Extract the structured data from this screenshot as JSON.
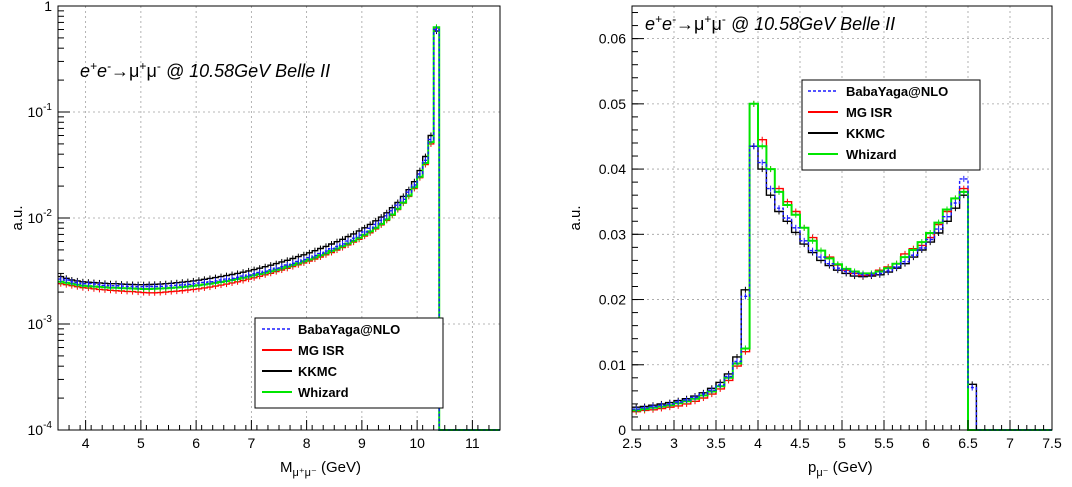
{
  "colors": {
    "BabaYaga@NLO": "#1a1aff",
    "MG ISR": "#ff0000",
    "KKMC": "#000000",
    "Whizard": "#00e600"
  },
  "chart_data": [
    {
      "type": "line",
      "subtype": "histogram",
      "annotation": {
        "pre": "e",
        "sup1": "+",
        "mid1": "e",
        "sup2": "-",
        "arrow": "→",
        "mu1": "μ",
        "sup3": "+",
        "mu2": "μ",
        "sup4": "-",
        "post": " @ 10.58GeV Belle II"
      },
      "xlabel": {
        "main": "M",
        "sub": "μ⁺μ⁻",
        "unit": " (GeV)"
      },
      "ylabel": "a.u.",
      "xlim": [
        3.5,
        11.5
      ],
      "ylim": [
        0.0001,
        1
      ],
      "yscale": "log",
      "grid": true,
      "legend_position": "bottom-right",
      "x_ticks": [
        "4",
        "5",
        "6",
        "7",
        "8",
        "9",
        "10",
        "11"
      ],
      "y_ticks": [
        {
          "base": "10",
          "exp": "-4"
        },
        {
          "base": "10",
          "exp": "-3"
        },
        {
          "base": "10",
          "exp": "-2"
        },
        {
          "base": "10",
          "exp": "-1"
        },
        {
          "base": "1",
          "exp": ""
        }
      ],
      "bin_width": 0.1,
      "bin_start": 3.5,
      "series": [
        {
          "name": "BabaYaga@NLO",
          "style": "dashed",
          "values": [
            0.00265,
            0.0026,
            0.0025,
            0.00245,
            0.0024,
            0.0024,
            0.00238,
            0.00235,
            0.00232,
            0.0023,
            0.0023,
            0.00228,
            0.00227,
            0.00226,
            0.00225,
            0.00225,
            0.00226,
            0.00226,
            0.00227,
            0.00228,
            0.0023,
            0.00232,
            0.00234,
            0.00237,
            0.0024,
            0.00243,
            0.00247,
            0.0025,
            0.00255,
            0.0026,
            0.00265,
            0.0027,
            0.00276,
            0.00283,
            0.0029,
            0.00298,
            0.00306,
            0.00315,
            0.00325,
            0.00336,
            0.00348,
            0.0036,
            0.00374,
            0.00389,
            0.00405,
            0.00423,
            0.00442,
            0.00463,
            0.00487,
            0.00513,
            0.0054,
            0.0057,
            0.00605,
            0.00645,
            0.0069,
            0.0074,
            0.008,
            0.0087,
            0.0095,
            0.0105,
            0.0117,
            0.0132,
            0.015,
            0.0175,
            0.0205,
            0.026,
            0.035,
            0.055,
            0.6,
            0,
            0,
            0,
            0,
            0,
            0,
            0,
            0,
            0,
            0,
            0
          ]
        },
        {
          "name": "MG ISR",
          "style": "solid",
          "values": [
            0.0024,
            0.00235,
            0.0023,
            0.00225,
            0.0022,
            0.00218,
            0.00215,
            0.00212,
            0.0021,
            0.00208,
            0.00206,
            0.00205,
            0.00203,
            0.00202,
            0.002,
            0.00198,
            0.00197,
            0.00197,
            0.00198,
            0.002,
            0.00202,
            0.00204,
            0.00206,
            0.00209,
            0.00212,
            0.00215,
            0.00219,
            0.00223,
            0.00228,
            0.00233,
            0.00238,
            0.00244,
            0.0025,
            0.00257,
            0.00265,
            0.00273,
            0.00282,
            0.00291,
            0.00301,
            0.00312,
            0.00323,
            0.00335,
            0.00348,
            0.00362,
            0.00377,
            0.00393,
            0.0041,
            0.00429,
            0.0045,
            0.00473,
            0.00498,
            0.00526,
            0.00557,
            0.00592,
            0.0063,
            0.00675,
            0.00725,
            0.0079,
            0.0086,
            0.0095,
            0.0106,
            0.012,
            0.0138,
            0.016,
            0.019,
            0.024,
            0.032,
            0.05,
            0.62,
            0,
            0,
            0,
            0,
            0,
            0,
            0,
            0,
            0,
            0,
            0
          ]
        },
        {
          "name": "KKMC",
          "style": "solid",
          "values": [
            0.0028,
            0.0027,
            0.0026,
            0.00255,
            0.0025,
            0.00248,
            0.00246,
            0.00244,
            0.00242,
            0.0024,
            0.0024,
            0.00238,
            0.00237,
            0.00236,
            0.00235,
            0.00235,
            0.00236,
            0.00237,
            0.00238,
            0.0024,
            0.00242,
            0.00245,
            0.00248,
            0.00251,
            0.00255,
            0.00259,
            0.00264,
            0.00269,
            0.00274,
            0.0028,
            0.00286,
            0.00293,
            0.003,
            0.00308,
            0.00317,
            0.00326,
            0.00336,
            0.00347,
            0.00359,
            0.00371,
            0.00385,
            0.00399,
            0.00415,
            0.00432,
            0.0045,
            0.0047,
            0.00492,
            0.00515,
            0.0054,
            0.00568,
            0.00598,
            0.0063,
            0.00667,
            0.00708,
            0.00755,
            0.00808,
            0.0087,
            0.0094,
            0.0102,
            0.0112,
            0.0125,
            0.014,
            0.016,
            0.0185,
            0.022,
            0.028,
            0.038,
            0.06,
            0.58,
            0,
            0,
            0,
            0,
            0,
            0,
            0,
            0,
            0,
            0,
            0
          ]
        },
        {
          "name": "Whizard",
          "style": "solid",
          "values": [
            0.0025,
            0.00245,
            0.0024,
            0.00235,
            0.0023,
            0.00228,
            0.00226,
            0.00224,
            0.00222,
            0.0022,
            0.0022,
            0.00218,
            0.00217,
            0.00216,
            0.00215,
            0.00214,
            0.00214,
            0.00215,
            0.00216,
            0.00217,
            0.00219,
            0.00221,
            0.00223,
            0.00226,
            0.00229,
            0.00232,
            0.00236,
            0.0024,
            0.00244,
            0.00249,
            0.00254,
            0.0026,
            0.00266,
            0.00273,
            0.0028,
            0.00288,
            0.00296,
            0.00305,
            0.00315,
            0.00325,
            0.00336,
            0.00348,
            0.00361,
            0.00375,
            0.0039,
            0.00407,
            0.00425,
            0.00445,
            0.00466,
            0.0049,
            0.00515,
            0.00543,
            0.00575,
            0.0061,
            0.0065,
            0.00695,
            0.00747,
            0.0081,
            0.0088,
            0.0097,
            0.0108,
            0.0122,
            0.014,
            0.0163,
            0.0195,
            0.0245,
            0.033,
            0.052,
            0.63,
            0,
            0,
            0,
            0,
            0,
            0,
            0,
            0,
            0,
            0,
            0
          ]
        }
      ]
    },
    {
      "type": "line",
      "subtype": "histogram",
      "annotation": {
        "pre": "e",
        "sup1": "+",
        "mid1": "e",
        "sup2": "-",
        "arrow": "→",
        "mu1": "μ",
        "sup3": "+",
        "mu2": "μ",
        "sup4": "-",
        "post": " @ 10.58GeV Belle II"
      },
      "xlabel": {
        "main": "p",
        "sub": "μ⁻",
        "unit": " (GeV)"
      },
      "ylabel": "a.u.",
      "xlim": [
        2.5,
        7.5
      ],
      "ylim": [
        0,
        0.065
      ],
      "yscale": "linear",
      "grid": true,
      "legend_position": "top-center",
      "x_ticks": [
        "2.5",
        "3",
        "3.5",
        "4",
        "4.5",
        "5",
        "5.5",
        "6",
        "6.5",
        "7",
        "7.5"
      ],
      "y_ticks": [
        "0",
        "0.01",
        "0.02",
        "0.03",
        "0.04",
        "0.05",
        "0.06"
      ],
      "bin_width": 0.1,
      "bin_start": 2.5,
      "series": [
        {
          "name": "BabaYaga@NLO",
          "style": "dashed",
          "values": [
            0.0032,
            0.0034,
            0.0036,
            0.0038,
            0.004,
            0.0043,
            0.0046,
            0.005,
            0.0055,
            0.0061,
            0.0069,
            0.0082,
            0.0105,
            0.0205,
            0.0435,
            0.041,
            0.037,
            0.034,
            0.0325,
            0.031,
            0.029,
            0.0275,
            0.0265,
            0.0255,
            0.0248,
            0.0243,
            0.024,
            0.0238,
            0.0238,
            0.024,
            0.0244,
            0.025,
            0.0258,
            0.0268,
            0.0279,
            0.0292,
            0.0308,
            0.0327,
            0.0348,
            0.0385,
            0.0065,
            0,
            0,
            0,
            0,
            0,
            0,
            0,
            0,
            0
          ]
        },
        {
          "name": "MG ISR",
          "style": "solid",
          "values": [
            0.0028,
            0.003,
            0.0031,
            0.0033,
            0.0035,
            0.0037,
            0.004,
            0.0044,
            0.0049,
            0.0055,
            0.0063,
            0.0076,
            0.0098,
            0.012,
            0.05,
            0.0445,
            0.04,
            0.037,
            0.035,
            0.0335,
            0.031,
            0.0295,
            0.0275,
            0.0265,
            0.0253,
            0.0245,
            0.024,
            0.0237,
            0.0238,
            0.0245,
            0.025,
            0.0255,
            0.027,
            0.0278,
            0.0283,
            0.0295,
            0.0315,
            0.0335,
            0.0355,
            0.037,
            0,
            0,
            0,
            0,
            0,
            0,
            0,
            0,
            0,
            0
          ]
        },
        {
          "name": "KKMC",
          "style": "solid",
          "values": [
            0.0035,
            0.0036,
            0.0038,
            0.004,
            0.0042,
            0.0045,
            0.0048,
            0.0052,
            0.0057,
            0.0064,
            0.0073,
            0.0086,
            0.0112,
            0.0215,
            0.0435,
            0.04,
            0.036,
            0.0335,
            0.032,
            0.0303,
            0.0285,
            0.0272,
            0.026,
            0.0252,
            0.0245,
            0.024,
            0.0236,
            0.0235,
            0.0236,
            0.0238,
            0.0242,
            0.0248,
            0.0255,
            0.0265,
            0.0276,
            0.0288,
            0.0302,
            0.032,
            0.034,
            0.036,
            0.007,
            0,
            0,
            0,
            0,
            0,
            0,
            0,
            0,
            0
          ]
        },
        {
          "name": "Whizard",
          "style": "solid",
          "values": [
            0.003,
            0.0032,
            0.0034,
            0.0036,
            0.0038,
            0.0041,
            0.0044,
            0.0048,
            0.0053,
            0.0059,
            0.0067,
            0.008,
            0.0102,
            0.0125,
            0.05,
            0.0435,
            0.04,
            0.0365,
            0.0345,
            0.033,
            0.031,
            0.029,
            0.0275,
            0.0263,
            0.0254,
            0.0247,
            0.0243,
            0.024,
            0.024,
            0.0243,
            0.0248,
            0.0255,
            0.0265,
            0.0276,
            0.0288,
            0.0302,
            0.0318,
            0.0338,
            0.0355,
            0.0365,
            0,
            0,
            0,
            0,
            0,
            0,
            0,
            0,
            0,
            0
          ]
        }
      ]
    }
  ]
}
